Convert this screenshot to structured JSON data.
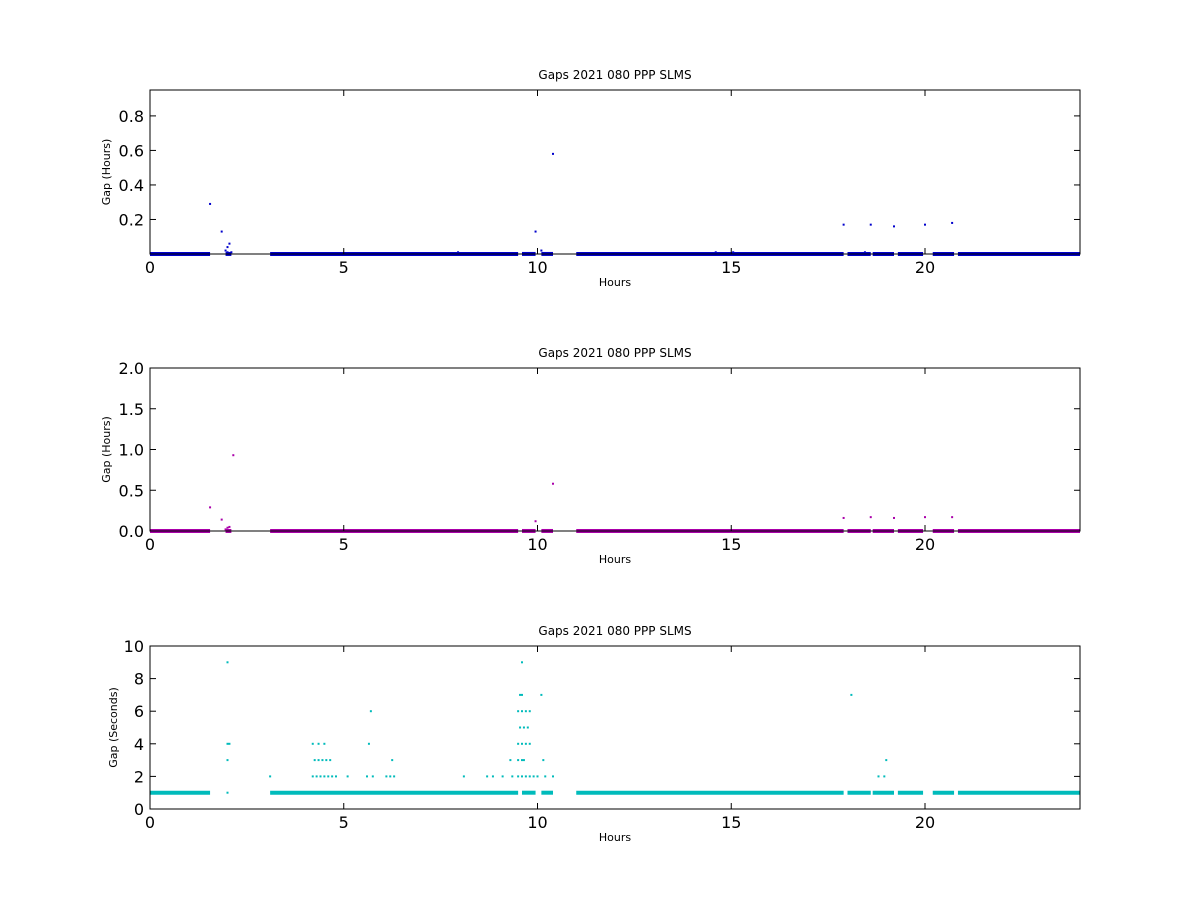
{
  "chart_data": [
    {
      "type": "scatter",
      "title": "Gaps 2021 080 PPP  SLMS",
      "xlabel": "Hours",
      "ylabel": "Gap (Hours)",
      "xlim": [
        0,
        24
      ],
      "ylim": [
        0,
        0.95
      ],
      "xticks": [
        0,
        5,
        10,
        15,
        20
      ],
      "xtick_labels": [
        "0",
        "5",
        "10",
        "15",
        "20"
      ],
      "yticks": [
        0.2,
        0.4,
        0.6,
        0.8
      ],
      "ytick_labels": [
        "0.2",
        "0.4",
        "0.6",
        "0.8"
      ],
      "color": "#0000cc",
      "grid": false,
      "baseline": {
        "value": 0.0003,
        "segments": [
          [
            0,
            1.55
          ],
          [
            1.95,
            2.1
          ],
          [
            3.1,
            9.5
          ],
          [
            9.6,
            9.95
          ],
          [
            10.1,
            10.4
          ],
          [
            11.0,
            17.9
          ],
          [
            18.0,
            18.6
          ],
          [
            18.65,
            19.2
          ],
          [
            19.3,
            19.95
          ],
          [
            20.2,
            20.75
          ],
          [
            20.85,
            24
          ]
        ]
      },
      "points": [
        {
          "x": 1.55,
          "y": 0.29
        },
        {
          "x": 1.85,
          "y": 0.13
        },
        {
          "x": 1.95,
          "y": 0.02
        },
        {
          "x": 2.0,
          "y": 0.04
        },
        {
          "x": 2.05,
          "y": 0.06
        },
        {
          "x": 2.0,
          "y": 0.01
        },
        {
          "x": 2.1,
          "y": 0.01
        },
        {
          "x": 7.95,
          "y": 0.01
        },
        {
          "x": 9.95,
          "y": 0.13
        },
        {
          "x": 10.1,
          "y": 0.02
        },
        {
          "x": 10.4,
          "y": 0.58
        },
        {
          "x": 14.6,
          "y": 0.01
        },
        {
          "x": 15.05,
          "y": 0.01
        },
        {
          "x": 17.9,
          "y": 0.17
        },
        {
          "x": 18.45,
          "y": 0.01
        },
        {
          "x": 18.6,
          "y": 0.17
        },
        {
          "x": 19.2,
          "y": 0.16
        },
        {
          "x": 20.0,
          "y": 0.17
        },
        {
          "x": 20.7,
          "y": 0.18
        }
      ]
    },
    {
      "type": "scatter",
      "title": "Gaps 2021 080 PPP  SLMS",
      "xlabel": "Hours",
      "ylabel": "Gap (Hours)",
      "xlim": [
        0,
        24
      ],
      "ylim": [
        0,
        2.0
      ],
      "xticks": [
        0,
        5,
        10,
        15,
        20
      ],
      "xtick_labels": [
        "0",
        "5",
        "10",
        "15",
        "20"
      ],
      "yticks": [
        0.0,
        0.5,
        1.0,
        1.5,
        2.0
      ],
      "ytick_labels": [
        "0.0",
        "0.5",
        "1.0",
        "1.5",
        "2.0"
      ],
      "color": "#aa00aa",
      "grid": false,
      "baseline": {
        "value": 0.0003,
        "segments": [
          [
            0,
            1.55
          ],
          [
            1.95,
            2.1
          ],
          [
            3.1,
            9.5
          ],
          [
            9.6,
            9.95
          ],
          [
            10.1,
            10.4
          ],
          [
            11.0,
            17.9
          ],
          [
            18.0,
            18.6
          ],
          [
            18.65,
            19.2
          ],
          [
            19.3,
            19.95
          ],
          [
            20.2,
            20.75
          ],
          [
            20.85,
            24
          ]
        ]
      },
      "points": [
        {
          "x": 1.55,
          "y": 0.29
        },
        {
          "x": 1.85,
          "y": 0.14
        },
        {
          "x": 1.95,
          "y": 0.02
        },
        {
          "x": 2.0,
          "y": 0.04
        },
        {
          "x": 2.05,
          "y": 0.05
        },
        {
          "x": 2.15,
          "y": 0.93
        },
        {
          "x": 9.95,
          "y": 0.12
        },
        {
          "x": 10.4,
          "y": 0.58
        },
        {
          "x": 17.9,
          "y": 0.16
        },
        {
          "x": 18.6,
          "y": 0.17
        },
        {
          "x": 19.2,
          "y": 0.16
        },
        {
          "x": 20.0,
          "y": 0.17
        },
        {
          "x": 20.7,
          "y": 0.17
        }
      ]
    },
    {
      "type": "scatter",
      "title": "Gaps 2021 080 PPP  SLMS",
      "xlabel": "Hours",
      "ylabel": "Gap (Seconds)",
      "xlim": [
        0,
        24
      ],
      "ylim": [
        0,
        10
      ],
      "xticks": [
        0,
        5,
        10,
        15,
        20
      ],
      "xtick_labels": [
        "0",
        "5",
        "10",
        "15",
        "20"
      ],
      "yticks": [
        0,
        2,
        4,
        6,
        8,
        10
      ],
      "ytick_labels": [
        "0",
        "2",
        "4",
        "6",
        "8",
        "10"
      ],
      "color": "#00bbbb",
      "grid": false,
      "baseline": {
        "value": 1,
        "segments": [
          [
            0,
            1.55
          ],
          [
            3.1,
            9.5
          ],
          [
            9.6,
            9.95
          ],
          [
            10.1,
            10.4
          ],
          [
            11.0,
            17.9
          ],
          [
            18.0,
            18.6
          ],
          [
            18.65,
            19.2
          ],
          [
            19.3,
            19.95
          ],
          [
            20.2,
            20.75
          ],
          [
            20.85,
            24
          ]
        ]
      },
      "points": [
        {
          "x": 2.0,
          "y": 9
        },
        {
          "x": 2.0,
          "y": 4
        },
        {
          "x": 2.05,
          "y": 4
        },
        {
          "x": 2.0,
          "y": 3
        },
        {
          "x": 2.0,
          "y": 1
        },
        {
          "x": 3.1,
          "y": 2
        },
        {
          "x": 4.2,
          "y": 4
        },
        {
          "x": 4.35,
          "y": 4
        },
        {
          "x": 4.5,
          "y": 4
        },
        {
          "x": 4.25,
          "y": 3
        },
        {
          "x": 4.35,
          "y": 3
        },
        {
          "x": 4.45,
          "y": 3
        },
        {
          "x": 4.55,
          "y": 3
        },
        {
          "x": 4.65,
          "y": 3
        },
        {
          "x": 4.2,
          "y": 2
        },
        {
          "x": 4.3,
          "y": 2
        },
        {
          "x": 4.4,
          "y": 2
        },
        {
          "x": 4.5,
          "y": 2
        },
        {
          "x": 4.6,
          "y": 2
        },
        {
          "x": 4.7,
          "y": 2
        },
        {
          "x": 4.8,
          "y": 2
        },
        {
          "x": 5.1,
          "y": 2
        },
        {
          "x": 5.7,
          "y": 6
        },
        {
          "x": 5.65,
          "y": 4
        },
        {
          "x": 5.6,
          "y": 2
        },
        {
          "x": 5.75,
          "y": 2
        },
        {
          "x": 6.1,
          "y": 2
        },
        {
          "x": 6.25,
          "y": 3
        },
        {
          "x": 6.2,
          "y": 2
        },
        {
          "x": 6.3,
          "y": 2
        },
        {
          "x": 8.1,
          "y": 2
        },
        {
          "x": 8.7,
          "y": 2
        },
        {
          "x": 8.85,
          "y": 2
        },
        {
          "x": 9.1,
          "y": 2
        },
        {
          "x": 9.3,
          "y": 3
        },
        {
          "x": 9.35,
          "y": 2
        },
        {
          "x": 9.6,
          "y": 9
        },
        {
          "x": 9.55,
          "y": 7
        },
        {
          "x": 9.6,
          "y": 7
        },
        {
          "x": 9.5,
          "y": 6
        },
        {
          "x": 9.6,
          "y": 6
        },
        {
          "x": 9.7,
          "y": 6
        },
        {
          "x": 9.8,
          "y": 6
        },
        {
          "x": 9.55,
          "y": 5
        },
        {
          "x": 9.65,
          "y": 5
        },
        {
          "x": 9.75,
          "y": 5
        },
        {
          "x": 9.5,
          "y": 4
        },
        {
          "x": 9.6,
          "y": 4
        },
        {
          "x": 9.7,
          "y": 4
        },
        {
          "x": 9.8,
          "y": 4
        },
        {
          "x": 9.5,
          "y": 3
        },
        {
          "x": 9.6,
          "y": 3
        },
        {
          "x": 9.65,
          "y": 3
        },
        {
          "x": 9.5,
          "y": 2
        },
        {
          "x": 9.6,
          "y": 2
        },
        {
          "x": 9.7,
          "y": 2
        },
        {
          "x": 9.8,
          "y": 2
        },
        {
          "x": 9.9,
          "y": 2
        },
        {
          "x": 10.0,
          "y": 2
        },
        {
          "x": 10.1,
          "y": 7
        },
        {
          "x": 10.15,
          "y": 3
        },
        {
          "x": 10.2,
          "y": 2
        },
        {
          "x": 10.4,
          "y": 2
        },
        {
          "x": 18.1,
          "y": 7
        },
        {
          "x": 18.8,
          "y": 2
        },
        {
          "x": 18.95,
          "y": 2
        },
        {
          "x": 19.0,
          "y": 3
        }
      ]
    }
  ]
}
